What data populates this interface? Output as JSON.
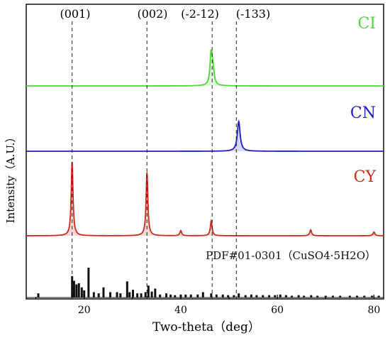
{
  "chart_data": {
    "type": "line",
    "xlabel": "Two-theta（deg）",
    "ylabel": "Intensity（A.U.）",
    "xlim": [
      8,
      82
    ],
    "xticks": [
      20,
      40,
      60,
      80
    ],
    "grid": false,
    "legend": "labels placed at right of each trace",
    "reference_lines": [
      {
        "label": "(001)",
        "x": 17.5
      },
      {
        "label": "(002)",
        "x": 33.0
      },
      {
        "label": "(-2-12)",
        "x": 46.5
      },
      {
        "label": "(-133)",
        "x": 51.5
      }
    ],
    "series": [
      {
        "name": "CI",
        "color": "#4fd63a",
        "peaks": [
          [
            46.3,
            1.0
          ],
          [
            46.7,
            0.35
          ]
        ],
        "peak_width": 0.28
      },
      {
        "name": "CN",
        "color": "#1e1ec8",
        "peaks": [
          [
            52.0,
            1.0
          ]
        ],
        "peak_width": 0.35
      },
      {
        "name": "CY",
        "color": "#cc2a1a",
        "peaks": [
          [
            17.5,
            1.0
          ],
          [
            33.0,
            0.86
          ],
          [
            40.0,
            0.07
          ],
          [
            46.3,
            0.2
          ],
          [
            66.9,
            0.08
          ],
          [
            80.0,
            0.05
          ]
        ],
        "peak_width": 0.22
      }
    ],
    "reference_pattern": {
      "name": "PDF#01-0301（CuSO4·5H2O）",
      "color": "#111111",
      "sticks": [
        [
          10.5,
          0.07
        ],
        [
          17.5,
          0.36
        ],
        [
          17.9,
          0.28
        ],
        [
          18.4,
          0.22
        ],
        [
          18.9,
          0.24
        ],
        [
          19.5,
          0.17
        ],
        [
          20.0,
          0.12
        ],
        [
          20.9,
          0.5
        ],
        [
          22.0,
          0.09
        ],
        [
          23.0,
          0.07
        ],
        [
          24.0,
          0.17
        ],
        [
          25.4,
          0.09
        ],
        [
          26.8,
          0.09
        ],
        [
          27.5,
          0.07
        ],
        [
          28.9,
          0.27
        ],
        [
          29.4,
          0.09
        ],
        [
          30.1,
          0.13
        ],
        [
          31.0,
          0.07
        ],
        [
          31.8,
          0.07
        ],
        [
          32.7,
          0.09
        ],
        [
          33.3,
          0.2
        ],
        [
          34.0,
          0.1
        ],
        [
          34.7,
          0.15
        ],
        [
          35.7,
          0.05
        ],
        [
          37.0,
          0.07
        ],
        [
          37.9,
          0.05
        ],
        [
          38.8,
          0.04
        ],
        [
          40.0,
          0.05
        ],
        [
          41.0,
          0.05
        ],
        [
          42.1,
          0.05
        ],
        [
          43.5,
          0.05
        ],
        [
          44.6,
          0.09
        ],
        [
          46.3,
          0.07
        ],
        [
          47.4,
          0.05
        ],
        [
          48.7,
          0.05
        ],
        [
          49.8,
          0.04
        ],
        [
          51.0,
          0.04
        ],
        [
          52.0,
          0.07
        ],
        [
          53.4,
          0.04
        ],
        [
          54.6,
          0.05
        ],
        [
          55.7,
          0.04
        ],
        [
          57.0,
          0.04
        ],
        [
          58.3,
          0.04
        ],
        [
          59.5,
          0.04
        ],
        [
          60.6,
          0.05
        ],
        [
          61.8,
          0.04
        ],
        [
          63.0,
          0.03
        ],
        [
          64.4,
          0.04
        ],
        [
          65.5,
          0.03
        ],
        [
          67.0,
          0.04
        ],
        [
          68.3,
          0.03
        ],
        [
          70.0,
          0.03
        ],
        [
          71.5,
          0.03
        ],
        [
          73.0,
          0.03
        ],
        [
          75.0,
          0.03
        ],
        [
          76.5,
          0.03
        ],
        [
          78.0,
          0.03
        ],
        [
          79.6,
          0.03
        ],
        [
          81.0,
          0.03
        ]
      ]
    }
  }
}
